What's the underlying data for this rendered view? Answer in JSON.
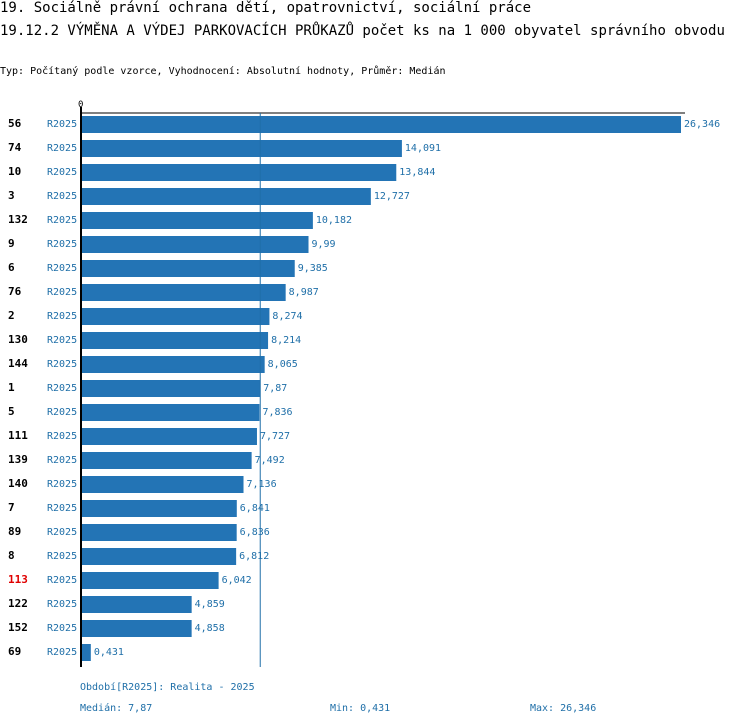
{
  "header": {
    "line1": "19. Sociálně právní ochrana dětí, opatrovnictví, sociální práce",
    "line2": "19.12.2 VÝMĚNA A VÝDEJ PARKOVACÍCH PRŮKAZŮ počet ks na 1 000 obyvatel správního obvodu",
    "subtitle": "Typ: Počítaný podle vzorce, Vyhodnocení: Absolutní hodnoty, Průměr: Medián"
  },
  "chart_data": {
    "type": "bar",
    "orientation": "horizontal",
    "axis_zero_label": "0",
    "xlim": [
      0,
      26.346
    ],
    "median": 7.87,
    "colors": {
      "bar": "#2374b5",
      "value_text": "#1f6fa8",
      "highlight": "#e00000"
    },
    "rows": [
      {
        "id": "56",
        "period": "R2025",
        "value": 26.346,
        "label": "26,346",
        "highlight": false
      },
      {
        "id": "74",
        "period": "R2025",
        "value": 14.091,
        "label": "14,091",
        "highlight": false
      },
      {
        "id": "10",
        "period": "R2025",
        "value": 13.844,
        "label": "13,844",
        "highlight": false
      },
      {
        "id": "3",
        "period": "R2025",
        "value": 12.727,
        "label": "12,727",
        "highlight": false
      },
      {
        "id": "132",
        "period": "R2025",
        "value": 10.182,
        "label": "10,182",
        "highlight": false
      },
      {
        "id": "9",
        "period": "R2025",
        "value": 9.99,
        "label": "9,99",
        "highlight": false
      },
      {
        "id": "6",
        "period": "R2025",
        "value": 9.385,
        "label": "9,385",
        "highlight": false
      },
      {
        "id": "76",
        "period": "R2025",
        "value": 8.987,
        "label": "8,987",
        "highlight": false
      },
      {
        "id": "2",
        "period": "R2025",
        "value": 8.274,
        "label": "8,274",
        "highlight": false
      },
      {
        "id": "130",
        "period": "R2025",
        "value": 8.214,
        "label": "8,214",
        "highlight": false
      },
      {
        "id": "144",
        "period": "R2025",
        "value": 8.065,
        "label": "8,065",
        "highlight": false
      },
      {
        "id": "1",
        "period": "R2025",
        "value": 7.87,
        "label": "7,87",
        "highlight": false
      },
      {
        "id": "5",
        "period": "R2025",
        "value": 7.836,
        "label": "7,836",
        "highlight": false
      },
      {
        "id": "111",
        "period": "R2025",
        "value": 7.727,
        "label": "7,727",
        "highlight": false
      },
      {
        "id": "139",
        "period": "R2025",
        "value": 7.492,
        "label": "7,492",
        "highlight": false
      },
      {
        "id": "140",
        "period": "R2025",
        "value": 7.136,
        "label": "7,136",
        "highlight": false
      },
      {
        "id": "7",
        "period": "R2025",
        "value": 6.841,
        "label": "6,841",
        "highlight": false
      },
      {
        "id": "89",
        "period": "R2025",
        "value": 6.836,
        "label": "6,836",
        "highlight": false
      },
      {
        "id": "8",
        "period": "R2025",
        "value": 6.812,
        "label": "6,812",
        "highlight": false
      },
      {
        "id": "113",
        "period": "R2025",
        "value": 6.042,
        "label": "6,042",
        "highlight": true
      },
      {
        "id": "122",
        "period": "R2025",
        "value": 4.859,
        "label": "4,859",
        "highlight": false
      },
      {
        "id": "152",
        "period": "R2025",
        "value": 4.858,
        "label": "4,858",
        "highlight": false
      },
      {
        "id": "69",
        "period": "R2025",
        "value": 0.431,
        "label": "0,431",
        "highlight": false
      }
    ]
  },
  "footer": {
    "period": "Období[R2025]: Realita - 2025",
    "median": "Medián: 7,87",
    "min": "Min: 0,431",
    "max": "Max: 26,346"
  }
}
